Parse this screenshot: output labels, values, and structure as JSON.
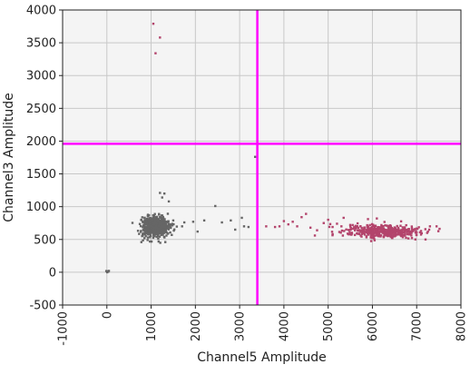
{
  "chart_data": {
    "type": "scatter",
    "xlabel": "Channel5 Amplitude",
    "ylabel": "Channel3 Amplitude",
    "xlim": [
      -1000,
      8000
    ],
    "ylim": [
      -500,
      4000
    ],
    "x_ticks": [
      -1000,
      0,
      1000,
      2000,
      3000,
      4000,
      5000,
      6000,
      7000,
      8000
    ],
    "y_ticks": [
      -500,
      0,
      500,
      1000,
      1500,
      2000,
      2500,
      3000,
      3500,
      4000
    ],
    "grid": true,
    "threshold_lines": {
      "x": 3400,
      "y": 1960,
      "color": "#ff00ff"
    },
    "colors": {
      "negative": "#666666",
      "positive": "#b3446c",
      "background": "#f4f4f4"
    },
    "series": [
      {
        "color": "#666666",
        "clusters": [
          {
            "cx": 1100,
            "cy": 700,
            "sx": 150,
            "sy": 75,
            "n": 650
          },
          {
            "cx": 0,
            "cy": 10,
            "sx": 25,
            "sy": 6,
            "n": 6
          }
        ],
        "points": [
          [
            1200,
            1210
          ],
          [
            1300,
            1200
          ],
          [
            1250,
            1140
          ],
          [
            1400,
            1080
          ],
          [
            1500,
            790
          ],
          [
            1750,
            760
          ],
          [
            1950,
            770
          ],
          [
            2050,
            620
          ],
          [
            2200,
            790
          ],
          [
            2450,
            1010
          ],
          [
            2600,
            760
          ],
          [
            2800,
            790
          ],
          [
            2900,
            650
          ],
          [
            3050,
            830
          ],
          [
            3100,
            700
          ],
          [
            3200,
            690
          ],
          [
            3350,
            1760
          ],
          [
            780,
            460
          ],
          [
            850,
            520
          ],
          [
            1700,
            700
          ]
        ]
      },
      {
        "color": "#b3446c",
        "clusters": [
          {
            "cx": 6250,
            "cy": 620,
            "sx": 430,
            "sy": 50,
            "n": 420
          }
        ],
        "points": [
          [
            1050,
            3790
          ],
          [
            1200,
            3580
          ],
          [
            1100,
            3340
          ],
          [
            3600,
            700
          ],
          [
            3800,
            690
          ],
          [
            3900,
            700
          ],
          [
            4000,
            780
          ],
          [
            4100,
            730
          ],
          [
            4200,
            770
          ],
          [
            4400,
            840
          ],
          [
            4500,
            890
          ],
          [
            4600,
            680
          ],
          [
            4750,
            640
          ],
          [
            4900,
            750
          ],
          [
            5000,
            800
          ],
          [
            5100,
            690
          ],
          [
            5200,
            740
          ],
          [
            5300,
            700
          ],
          [
            5350,
            830
          ],
          [
            5500,
            650
          ],
          [
            5600,
            680
          ],
          [
            4300,
            700
          ],
          [
            4700,
            560
          ],
          [
            7300,
            700
          ],
          [
            7450,
            700
          ],
          [
            7200,
            500
          ],
          [
            5900,
            810
          ],
          [
            6100,
            820
          ]
        ]
      }
    ]
  }
}
